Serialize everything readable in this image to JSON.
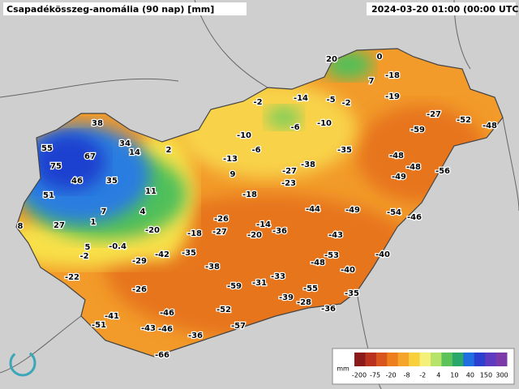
{
  "header": {
    "title": "Csapadékösszeg-anomália (90 nap) [mm]",
    "timestamp": "2024-03-20 01:00 (00:00 UTC)"
  },
  "stations": [
    20,
    0,
    7,
    -18,
    -19,
    -2,
    -14,
    -5,
    -2,
    -6,
    -10,
    -27,
    -52,
    -48,
    -59,
    38,
    34,
    14,
    2,
    -10,
    -6,
    -35,
    55,
    67,
    75,
    -13,
    -38,
    -27,
    -48,
    -48,
    -56,
    -49,
    46,
    35,
    9,
    -23,
    51,
    11,
    -18,
    -44,
    -49,
    -54,
    -46,
    7,
    4,
    -26,
    -14,
    27,
    1,
    -20,
    -18,
    -27,
    -20,
    -36,
    -43,
    8,
    5,
    -0.4,
    -35,
    -42,
    -2,
    -29,
    -53,
    -40,
    -48,
    -38,
    -40,
    -33,
    -22,
    -26,
    -59,
    -31,
    -55,
    -35,
    -39,
    -28,
    -36,
    -52,
    -41,
    -46,
    -57,
    -51,
    -43,
    -46,
    -36,
    -66
  ],
  "legend": {
    "unit": "mm",
    "labels": [
      "-200",
      "-75",
      "-20",
      "-8",
      "-2",
      "4",
      "10",
      "40",
      "150",
      "300"
    ]
  }
}
